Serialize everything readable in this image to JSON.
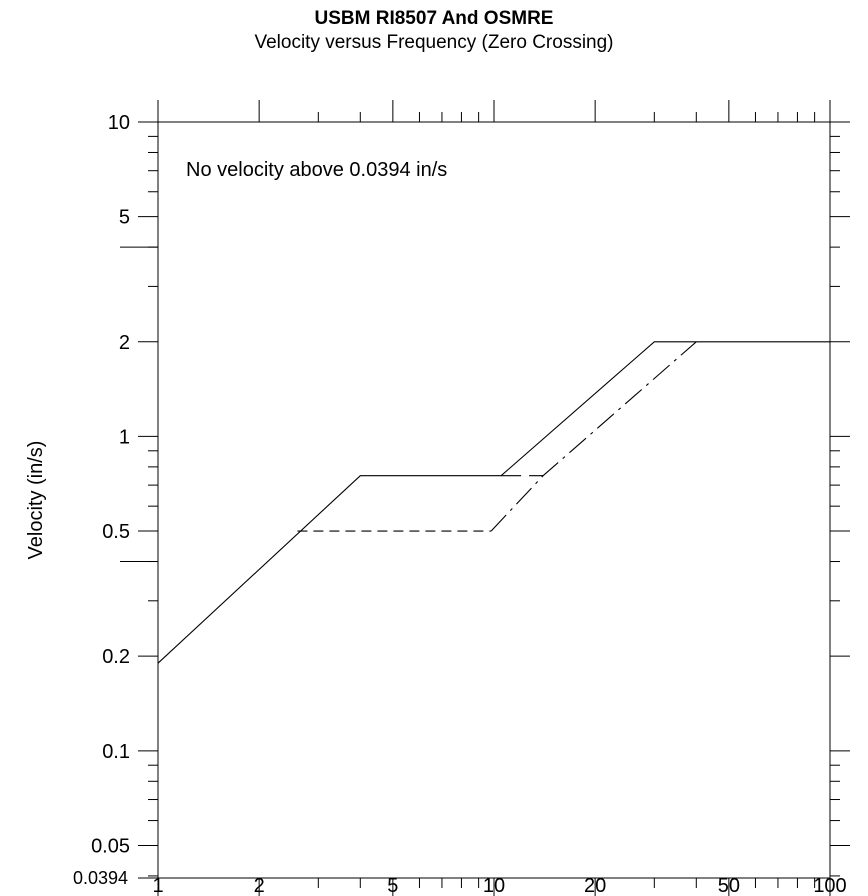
{
  "chart_data": {
    "type": "line",
    "title": "USBM RI8507 And OSMRE",
    "subtitle": "Velocity versus Frequency (Zero Crossing)",
    "xlabel": "",
    "ylabel": "Velocity (in/s)",
    "xscale": "log",
    "yscale": "log",
    "xlim": [
      1,
      100
    ],
    "ylim": [
      0.0394,
      10
    ],
    "x_ticks": [
      1,
      2,
      5,
      10,
      20,
      50,
      100
    ],
    "x_tick_labels": [
      "1",
      "2",
      "5",
      "10",
      "20",
      "50",
      "100"
    ],
    "y_ticks": [
      10,
      5,
      2,
      1,
      0.5,
      0.2,
      0.1,
      0.05,
      0.0394
    ],
    "y_tick_labels": [
      "10",
      "5",
      "2",
      "1",
      "0.5",
      "0.2",
      "0.1",
      "0.05",
      "0.0394"
    ],
    "grid": false,
    "annotation": "No velocity above 0.0394 in/s",
    "series": [
      {
        "style": "solid",
        "color": "#000000",
        "x": [
          1,
          4,
          10.5,
          30,
          100
        ],
        "y": [
          0.19,
          0.75,
          0.75,
          2.0,
          2.0
        ]
      },
      {
        "style": "long-dash",
        "color": "#000000",
        "x": [
          10.5,
          14
        ],
        "y": [
          0.75,
          0.75
        ]
      },
      {
        "style": "dashed",
        "color": "#000000",
        "x": [
          2.6,
          9.8
        ],
        "y": [
          0.5,
          0.5
        ]
      },
      {
        "style": "dash-dot",
        "color": "#000000",
        "x": [
          9.8,
          14,
          40
        ],
        "y": [
          0.5,
          0.75,
          2.0
        ]
      }
    ]
  }
}
